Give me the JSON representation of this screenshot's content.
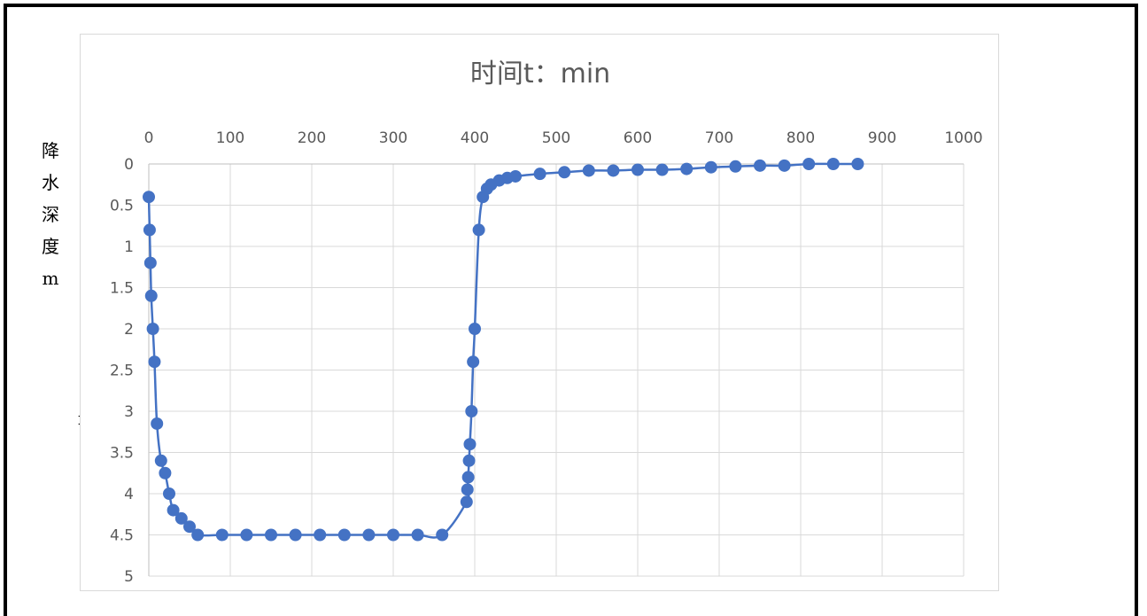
{
  "ylabel_chars": [
    "降",
    "水",
    "深",
    "度",
    "m"
  ],
  "stray_char": "m",
  "chart_data": {
    "type": "scatter",
    "title": "时间t：min",
    "xlabel": "",
    "ylabel": "降水深度m",
    "xlim": [
      0,
      1000
    ],
    "ylim": [
      0,
      5
    ],
    "x_ticks": [
      0,
      100,
      200,
      300,
      400,
      500,
      600,
      700,
      800,
      900,
      1000
    ],
    "y_ticks": [
      0,
      0.5,
      1,
      1.5,
      2,
      2.5,
      3,
      3.5,
      4,
      4.5,
      5
    ],
    "x_axis_position": "top",
    "y_axis_reversed": true,
    "grid": true,
    "line_color": "#4472C4",
    "series": [
      {
        "smooth": true,
        "markers": true,
        "points": [
          [
            0,
            0.4
          ],
          [
            1,
            0.8
          ],
          [
            2,
            1.2
          ],
          [
            3,
            1.6
          ],
          [
            5,
            2.0
          ],
          [
            7,
            2.4
          ],
          [
            10,
            3.15
          ],
          [
            15,
            3.6
          ],
          [
            20,
            3.75
          ],
          [
            25,
            4.0
          ],
          [
            30,
            4.2
          ],
          [
            40,
            4.3
          ],
          [
            50,
            4.4
          ],
          [
            60,
            4.5
          ],
          [
            90,
            4.5
          ],
          [
            120,
            4.5
          ],
          [
            150,
            4.5
          ],
          [
            180,
            4.5
          ],
          [
            210,
            4.5
          ],
          [
            240,
            4.5
          ],
          [
            270,
            4.5
          ],
          [
            300,
            4.5
          ],
          [
            330,
            4.5
          ],
          [
            360,
            4.5
          ],
          [
            390,
            4.1
          ],
          [
            391,
            3.95
          ],
          [
            392,
            3.8
          ],
          [
            393,
            3.6
          ],
          [
            394,
            3.4
          ],
          [
            396,
            3.0
          ],
          [
            398,
            2.4
          ],
          [
            400,
            2.0
          ],
          [
            405,
            0.8
          ],
          [
            410,
            0.4
          ],
          [
            415,
            0.3
          ],
          [
            420,
            0.25
          ],
          [
            430,
            0.2
          ],
          [
            440,
            0.17
          ],
          [
            450,
            0.15
          ],
          [
            480,
            0.12
          ],
          [
            510,
            0.1
          ],
          [
            540,
            0.08
          ],
          [
            570,
            0.08
          ],
          [
            600,
            0.07
          ],
          [
            630,
            0.07
          ],
          [
            660,
            0.06
          ],
          [
            690,
            0.04
          ],
          [
            720,
            0.03
          ],
          [
            750,
            0.02
          ],
          [
            780,
            0.02
          ],
          [
            810,
            0.0
          ],
          [
            840,
            0.0
          ],
          [
            870,
            0.0
          ]
        ]
      }
    ]
  }
}
